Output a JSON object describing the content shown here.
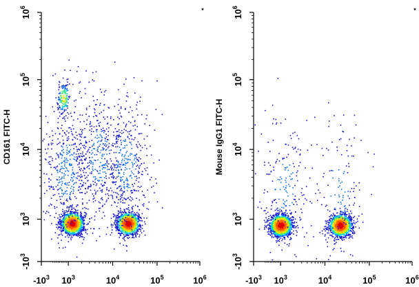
{
  "chart_data": [
    {
      "type": "scatter",
      "ylabel": "CD161 FITC-H",
      "corner_mark": "*",
      "x_scale": "logicle",
      "y_scale": "logicle",
      "xlim": [
        -1000,
        1000000
      ],
      "ylim": [
        -1000,
        1000000
      ],
      "x_ticks": [
        {
          "base": "-10",
          "exp": "3",
          "value": -1000
        },
        {
          "base": "10",
          "exp": "3",
          "value": 1000
        },
        {
          "base": "10",
          "exp": "4",
          "value": 10000
        },
        {
          "base": "10",
          "exp": "5",
          "value": 100000
        },
        {
          "base": "10",
          "exp": "6",
          "value": 1000000
        }
      ],
      "y_ticks": [
        {
          "base": "-10",
          "exp": "3",
          "value": -1000
        },
        {
          "base": "10",
          "exp": "3",
          "value": 1000
        },
        {
          "base": "10",
          "exp": "4",
          "value": 10000
        },
        {
          "base": "10",
          "exp": "5",
          "value": 100000
        },
        {
          "base": "10",
          "exp": "6",
          "value": 1000000
        }
      ],
      "populations": [
        {
          "x_center": 1200,
          "y_center": 850,
          "density": "high",
          "events": 1400
        },
        {
          "x_center": 22000,
          "y_center": 850,
          "density": "high",
          "events": 1200
        },
        {
          "x_center": 700,
          "y_center": 55000,
          "density": "medium",
          "events": 160
        },
        {
          "x_center": 900,
          "y_center": 5000,
          "density": "low",
          "events": 500
        },
        {
          "x_center": 20000,
          "y_center": 6000,
          "density": "low",
          "events": 450
        },
        {
          "x_center": 5000,
          "y_center": 8000,
          "density": "low",
          "events": 350
        }
      ],
      "grid": false
    },
    {
      "type": "scatter",
      "ylabel": "Mouse IgG1 FITC-H",
      "corner_mark": "*",
      "x_scale": "logicle",
      "y_scale": "logicle",
      "xlim": [
        -1000,
        1000000
      ],
      "ylim": [
        -1000,
        1000000
      ],
      "x_ticks": [
        {
          "base": "-10",
          "exp": "3",
          "value": -1000
        },
        {
          "base": "10",
          "exp": "3",
          "value": 1000
        },
        {
          "base": "10",
          "exp": "4",
          "value": 10000
        },
        {
          "base": "10",
          "exp": "5",
          "value": 100000
        },
        {
          "base": "10",
          "exp": "6",
          "value": 1000000
        }
      ],
      "y_ticks": [
        {
          "base": "-10",
          "exp": "3",
          "value": -1000
        },
        {
          "base": "10",
          "exp": "3",
          "value": 1000
        },
        {
          "base": "10",
          "exp": "4",
          "value": 10000
        },
        {
          "base": "10",
          "exp": "5",
          "value": 100000
        },
        {
          "base": "10",
          "exp": "6",
          "value": 1000000
        }
      ],
      "populations": [
        {
          "x_center": 1000,
          "y_center": 780,
          "density": "high",
          "events": 1600
        },
        {
          "x_center": 22000,
          "y_center": 780,
          "density": "high",
          "events": 1300
        },
        {
          "x_center": 1200,
          "y_center": 3000,
          "density": "low",
          "events": 200
        },
        {
          "x_center": 20000,
          "y_center": 2500,
          "density": "low",
          "events": 150
        }
      ],
      "grid": false
    }
  ],
  "colors": {
    "density_scale": [
      "#1414d2",
      "#0a6cf0",
      "#00c8ff",
      "#32e678",
      "#d2f000",
      "#ffb400",
      "#ff5a00",
      "#e10000"
    ],
    "axis": "#000000",
    "background": "#ffffff"
  }
}
